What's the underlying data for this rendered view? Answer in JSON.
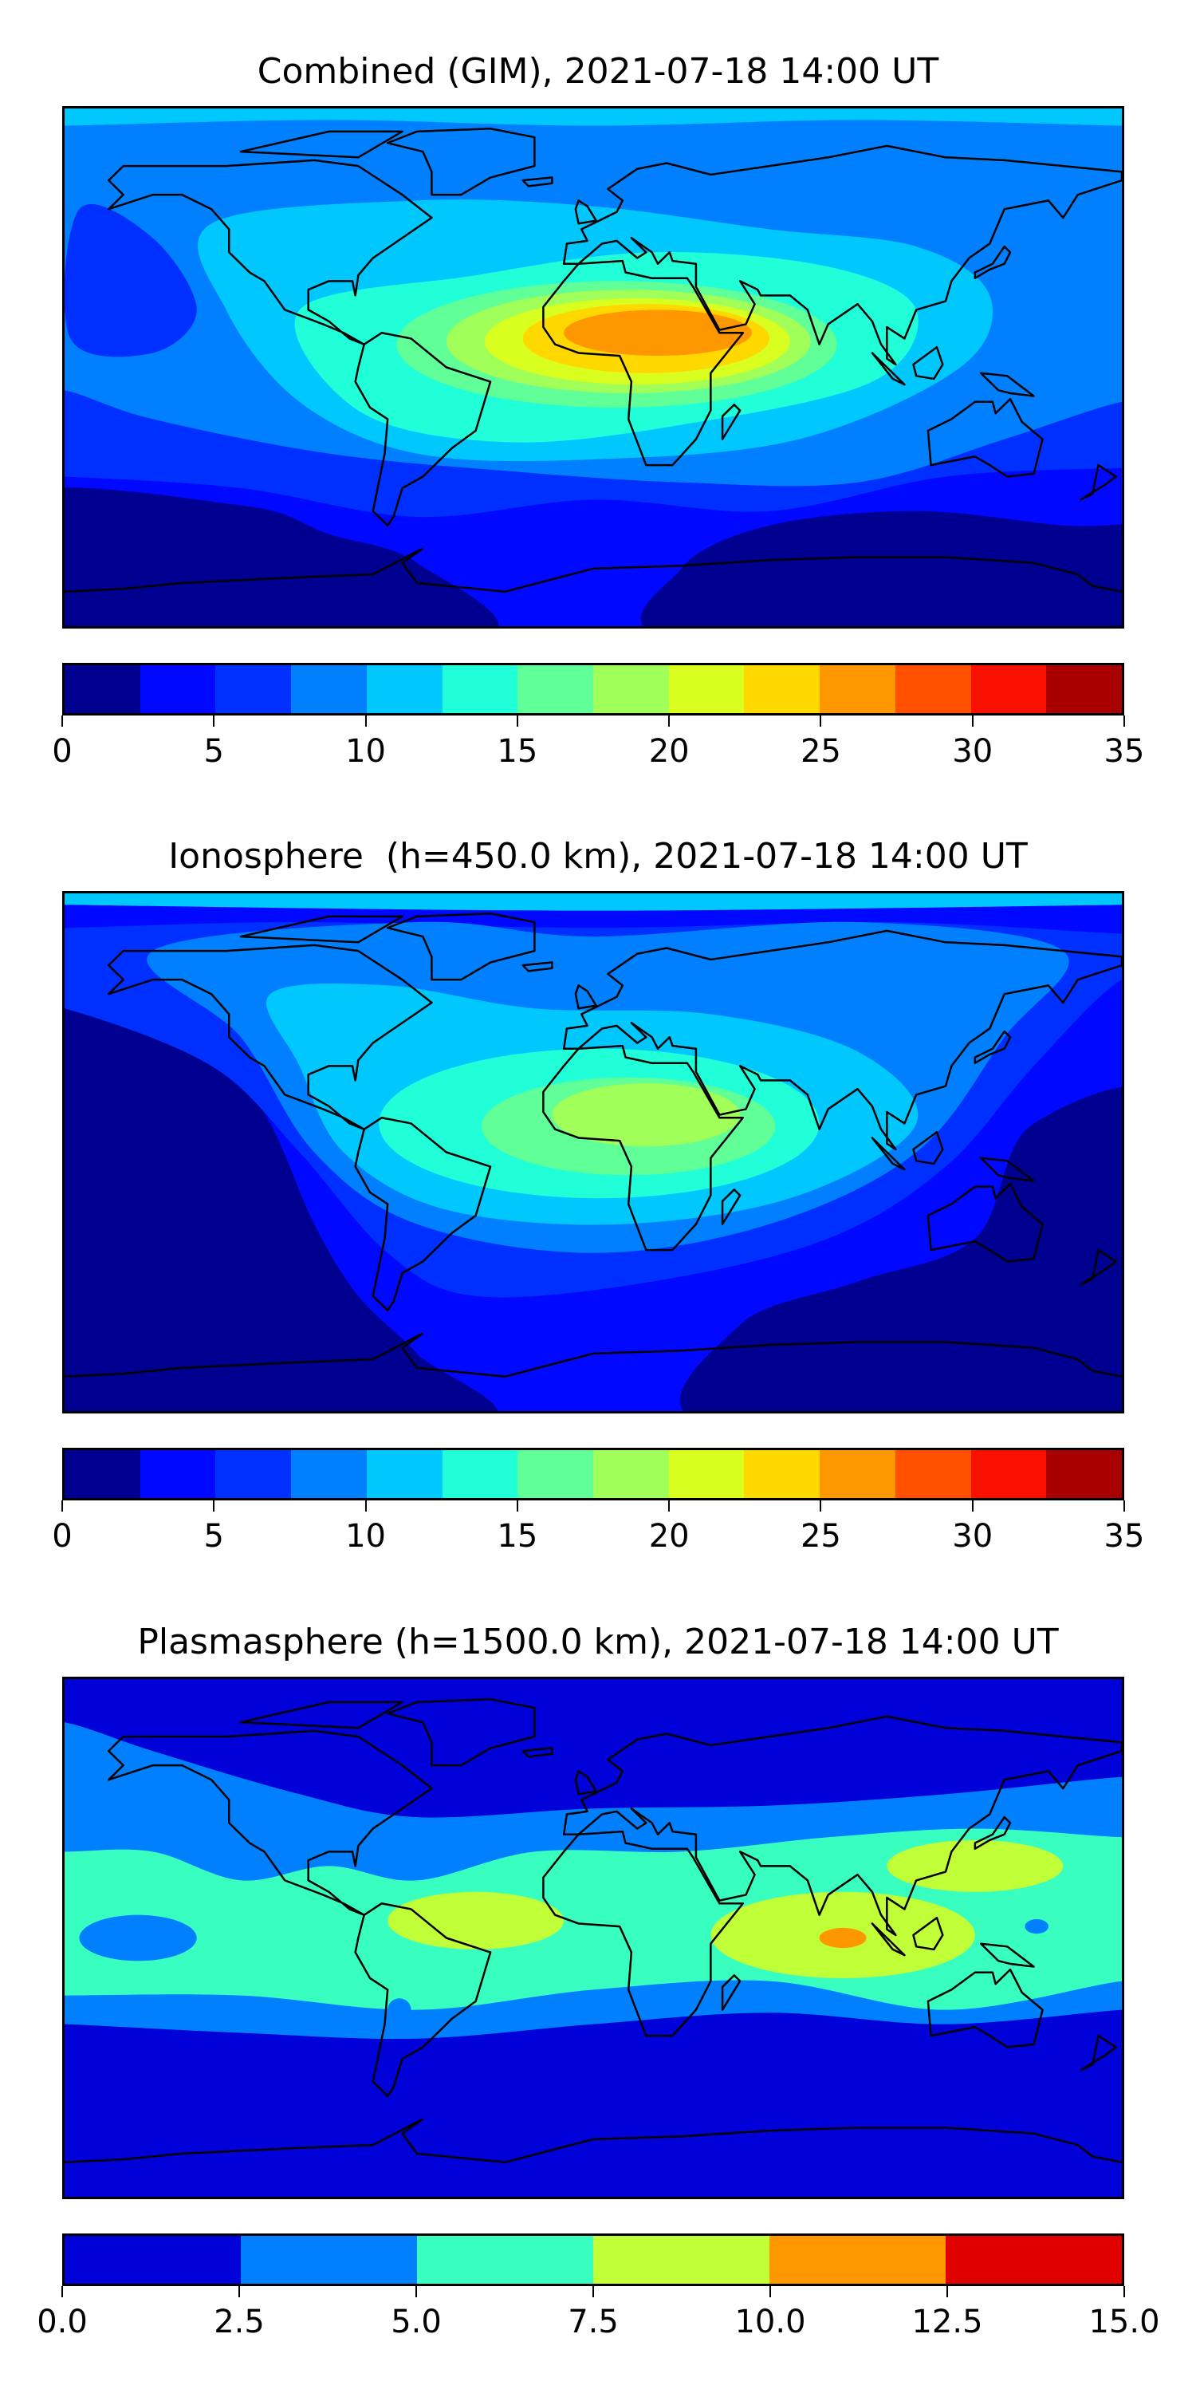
{
  "chart_data": [
    {
      "type": "heatmap",
      "title": "Combined (GIM), 2021-07-18 14:00 UT",
      "xlabel": "",
      "ylabel": "",
      "colorbar": {
        "ticks": [
          "0",
          "5",
          "10",
          "15",
          "20",
          "25",
          "30",
          "35"
        ],
        "range": [
          0,
          35
        ],
        "levels": [
          0,
          2.5,
          5,
          7.5,
          10,
          12.5,
          15,
          17.5,
          20,
          22.5,
          25,
          27.5,
          30,
          32.5,
          35
        ],
        "colors": [
          "#000090",
          "#0008ff",
          "#0030ff",
          "#0080ff",
          "#00c8ff",
          "#20ffd8",
          "#60ff98",
          "#a0ff58",
          "#d8ff20",
          "#ffd800",
          "#ff9800",
          "#ff5000",
          "#f81000",
          "#a80000"
        ]
      },
      "approx_peak_range": [
        25,
        27.5
      ],
      "peak_region": "North Africa / Arabia"
    },
    {
      "type": "heatmap",
      "title": "Ionosphere  (h=450.0 km), 2021-07-18 14:00 UT",
      "xlabel": "",
      "ylabel": "",
      "colorbar": {
        "ticks": [
          "0",
          "5",
          "10",
          "15",
          "20",
          "25",
          "30",
          "35"
        ],
        "range": [
          0,
          35
        ],
        "levels": [
          0,
          2.5,
          5,
          7.5,
          10,
          12.5,
          15,
          17.5,
          20,
          22.5,
          25,
          27.5,
          30,
          32.5,
          35
        ],
        "colors": [
          "#000090",
          "#0008ff",
          "#0030ff",
          "#0080ff",
          "#00c8ff",
          "#20ffd8",
          "#60ff98",
          "#a0ff58",
          "#d8ff20",
          "#ffd800",
          "#ff9800",
          "#ff5000",
          "#f81000",
          "#a80000"
        ]
      },
      "approx_peak_range": [
        17.5,
        20
      ],
      "peak_region": "North Africa / Arabia"
    },
    {
      "type": "heatmap",
      "title": "Plasmasphere (h=1500.0 km), 2021-07-18 14:00 UT",
      "xlabel": "",
      "ylabel": "",
      "colorbar": {
        "ticks": [
          "0.0",
          "2.5",
          "5.0",
          "7.5",
          "10.0",
          "12.5",
          "15.0"
        ],
        "range": [
          0,
          15
        ],
        "levels": [
          0,
          2.5,
          5,
          7.5,
          10,
          12.5,
          15
        ],
        "colors": [
          "#0000d8",
          "#0080ff",
          "#38ffc0",
          "#c0ff38",
          "#ff9800",
          "#e00000"
        ]
      },
      "approx_peak_range": [
        10,
        12.5
      ],
      "peak_region": "Bay of Bengal"
    }
  ]
}
